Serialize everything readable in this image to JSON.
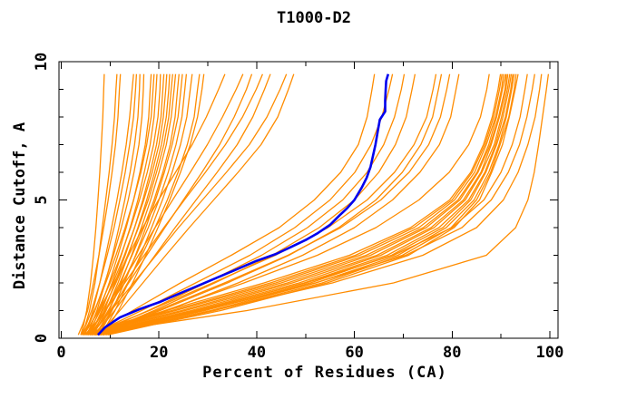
{
  "chart_data": {
    "type": "line",
    "title": "T1000-D2",
    "xlabel": "Percent of Residues (CA)",
    "ylabel": "Distance Cutoff, A",
    "xlim": [
      0,
      102
    ],
    "ylim": [
      0,
      10
    ],
    "x_major_ticks": [
      0,
      20,
      40,
      60,
      80,
      100
    ],
    "x_minor_ticks": [
      10,
      30,
      50,
      70,
      90
    ],
    "y_major_ticks": [
      0,
      5,
      10
    ],
    "y_minor_ticks": [
      1,
      2,
      3,
      4,
      6,
      7,
      8,
      9
    ],
    "grid": false,
    "legend_position": "none",
    "colors": {
      "models": "#ff8c00",
      "highlight": "#0000ee",
      "axis": "#000000",
      "background": "#ffffff"
    },
    "series": [
      {
        "name": "other-models",
        "color": "#ff8c00",
        "y_grid": [
          0.12,
          0.5,
          1,
          2,
          3,
          4,
          5,
          6,
          7,
          8,
          9,
          9.55
        ],
        "curves_x": [
          [
            4.0,
            4.6,
            5.2,
            6.0,
            6.6,
            7.1,
            7.5,
            7.9,
            8.2,
            8.5,
            8.7,
            8.8
          ],
          [
            4.2,
            5.0,
            5.8,
            6.9,
            7.7,
            8.4,
            9.1,
            9.8,
            10.4,
            10.9,
            11.2,
            11.4
          ],
          [
            3.5,
            4.4,
            5.4,
            6.6,
            7.7,
            8.7,
            9.6,
            10.4,
            11.1,
            11.6,
            11.9,
            12.1
          ],
          [
            4.8,
            5.6,
            6.5,
            7.9,
            9.1,
            10.3,
            11.4,
            12.4,
            13.3,
            14.0,
            14.5,
            14.8
          ],
          [
            4.0,
            5.1,
            6.2,
            7.9,
            9.4,
            10.8,
            12.0,
            13.1,
            14.0,
            14.8,
            15.2,
            15.4
          ],
          [
            5.2,
            6.2,
            7.3,
            9.0,
            10.5,
            11.8,
            13.0,
            14.1,
            15.0,
            15.7,
            16.0,
            16.1
          ],
          [
            4.5,
            5.7,
            6.9,
            8.9,
            10.7,
            12.3,
            13.7,
            14.9,
            15.9,
            16.5,
            16.8,
            16.9
          ],
          [
            5.5,
            6.6,
            7.8,
            9.8,
            11.6,
            13.3,
            14.8,
            16.1,
            17.2,
            17.9,
            18.2,
            18.4
          ],
          [
            4.2,
            5.5,
            6.8,
            9.1,
            11.2,
            13.1,
            14.8,
            16.3,
            17.5,
            18.4,
            18.8,
            19.0
          ],
          [
            5.8,
            7.0,
            8.3,
            10.4,
            12.3,
            14.1,
            15.7,
            17.0,
            18.2,
            19.0,
            19.4,
            19.6
          ],
          [
            4.6,
            6.0,
            7.5,
            10.0,
            12.2,
            14.2,
            16.0,
            17.6,
            18.9,
            19.8,
            20.2,
            20.3
          ],
          [
            6.2,
            7.5,
            8.8,
            11.0,
            13.1,
            15.0,
            16.7,
            18.2,
            19.5,
            20.4,
            20.8,
            21.0
          ],
          [
            5.0,
            6.5,
            8.0,
            10.6,
            12.9,
            15.0,
            16.9,
            18.6,
            20.0,
            20.9,
            21.4,
            21.6
          ],
          [
            6.5,
            7.8,
            9.2,
            11.6,
            13.7,
            15.7,
            17.5,
            19.1,
            20.5,
            21.5,
            22.0,
            22.2
          ],
          [
            5.4,
            7.0,
            8.5,
            11.2,
            13.6,
            15.8,
            17.8,
            19.5,
            21.0,
            22.0,
            22.5,
            22.8
          ],
          [
            7.0,
            8.3,
            9.8,
            12.2,
            14.4,
            16.4,
            18.3,
            20.0,
            21.5,
            22.5,
            23.1,
            23.4
          ],
          [
            5.8,
            7.4,
            9.1,
            12.0,
            14.5,
            16.9,
            19.0,
            20.8,
            22.3,
            23.3,
            23.8,
            24.1
          ],
          [
            7.4,
            8.9,
            10.4,
            12.9,
            15.2,
            17.3,
            19.3,
            21.1,
            22.7,
            23.9,
            24.5,
            24.8
          ],
          [
            6.1,
            7.9,
            9.6,
            12.6,
            15.3,
            17.8,
            20.0,
            21.9,
            23.5,
            24.7,
            25.3,
            25.6
          ],
          [
            7.8,
            9.4,
            11.0,
            13.7,
            16.2,
            18.5,
            20.7,
            22.7,
            24.4,
            25.7,
            26.4,
            26.8
          ],
          [
            6.6,
            8.5,
            10.3,
            13.6,
            16.5,
            19.2,
            21.7,
            23.9,
            25.8,
            27.2,
            27.9,
            28.3
          ],
          [
            8.2,
            10.0,
            11.7,
            14.6,
            17.3,
            19.8,
            22.2,
            24.4,
            26.4,
            27.9,
            28.8,
            29.2
          ],
          [
            4.4,
            6.0,
            7.7,
            10.8,
            13.8,
            16.7,
            19.9,
            23.4,
            26.8,
            29.7,
            32.2,
            33.5
          ],
          [
            5.2,
            7.0,
            8.9,
            12.4,
            15.8,
            19.2,
            22.8,
            26.4,
            29.9,
            33.0,
            35.8,
            37.2
          ],
          [
            6.0,
            7.9,
            10.0,
            13.8,
            17.5,
            21.2,
            25.0,
            28.8,
            32.4,
            35.4,
            37.9,
            39.0
          ],
          [
            4.8,
            6.8,
            9.0,
            13.0,
            17.0,
            21.0,
            25.2,
            29.5,
            33.6,
            37.1,
            39.9,
            41.2
          ],
          [
            6.6,
            8.7,
            10.9,
            15.1,
            19.2,
            23.3,
            27.6,
            31.9,
            36.0,
            39.2,
            41.6,
            42.8
          ],
          [
            5.5,
            7.8,
            10.2,
            14.8,
            19.4,
            24.0,
            28.9,
            33.8,
            38.5,
            42.1,
            44.8,
            46.1
          ],
          [
            7.2,
            9.5,
            12.0,
            16.7,
            21.4,
            26.2,
            31.2,
            36.2,
            40.9,
            44.3,
            46.5,
            47.6
          ],
          [
            6.4,
            9.8,
            14.6,
            24.4,
            34.8,
            44.6,
            51.8,
            57.2,
            60.8,
            62.6,
            63.6,
            64.1
          ],
          [
            5.8,
            10.5,
            16.4,
            27.5,
            38.6,
            47.8,
            55.0,
            60.1,
            63.4,
            65.6,
            67.1,
            67.8
          ],
          [
            6.8,
            11.4,
            17.8,
            29.6,
            41.0,
            50.4,
            57.6,
            62.6,
            66.0,
            68.2,
            69.6,
            70.2
          ],
          [
            7.5,
            12.2,
            19.0,
            31.4,
            43.2,
            52.8,
            60.0,
            65.0,
            68.4,
            70.6,
            71.8,
            72.4
          ],
          [
            6.2,
            11.0,
            18.0,
            31.0,
            43.8,
            54.6,
            62.6,
            68.2,
            72.2,
            74.8,
            76.1,
            76.7
          ],
          [
            8.0,
            13.0,
            20.2,
            34.0,
            46.6,
            56.8,
            64.4,
            69.8,
            73.6,
            76.0,
            77.2,
            77.8
          ],
          [
            7.0,
            12.4,
            19.6,
            33.4,
            46.4,
            57.2,
            65.4,
            71.2,
            75.2,
            77.6,
            78.9,
            79.5
          ],
          [
            8.5,
            13.8,
            21.6,
            36.2,
            49.4,
            60.0,
            67.8,
            73.4,
            77.4,
            79.7,
            80.8,
            81.4
          ],
          [
            7.2,
            13.2,
            21.2,
            37.4,
            52.4,
            64.4,
            73.2,
            79.4,
            83.4,
            85.8,
            87.1,
            87.6
          ],
          [
            4.5,
            11.0,
            21.5,
            41.5,
            59.0,
            71.5,
            79.5,
            83.8,
            86.4,
            88.2,
            89.4,
            89.9
          ],
          [
            5.0,
            11.8,
            22.6,
            42.8,
            60.2,
            72.2,
            80.0,
            84.1,
            86.7,
            88.5,
            89.7,
            90.2
          ],
          [
            5.4,
            12.4,
            23.4,
            43.9,
            61.1,
            73.2,
            80.5,
            84.6,
            87.0,
            88.9,
            90.1,
            90.5
          ],
          [
            5.9,
            13.1,
            24.6,
            45.0,
            62.4,
            74.1,
            81.2,
            85.1,
            87.5,
            89.1,
            90.3,
            90.9
          ],
          [
            6.3,
            13.9,
            25.4,
            46.3,
            63.3,
            74.7,
            81.6,
            85.3,
            87.8,
            89.5,
            90.8,
            91.1
          ],
          [
            6.8,
            14.7,
            26.6,
            47.3,
            64.6,
            75.7,
            82.3,
            85.9,
            88.0,
            89.7,
            91.0,
            91.4
          ],
          [
            7.3,
            15.3,
            27.4,
            48.7,
            65.4,
            76.3,
            82.7,
            86.1,
            88.6,
            90.1,
            91.3,
            91.8
          ],
          [
            7.7,
            16.2,
            28.6,
            49.7,
            66.7,
            77.3,
            83.4,
            86.7,
            88.9,
            90.4,
            91.6,
            92.1
          ],
          [
            8.1,
            16.8,
            29.4,
            51.0,
            67.6,
            78.1,
            83.8,
            86.9,
            89.1,
            90.9,
            92.0,
            92.4
          ],
          [
            8.6,
            17.7,
            30.6,
            52.1,
            68.9,
            78.8,
            84.5,
            87.5,
            89.6,
            91.1,
            92.2,
            92.7
          ],
          [
            9.1,
            18.3,
            31.4,
            53.4,
            69.8,
            79.8,
            85.0,
            87.9,
            89.8,
            91.6,
            92.7,
            93.1
          ],
          [
            9.5,
            19.1,
            32.6,
            54.4,
            71.1,
            80.4,
            85.6,
            88.1,
            90.3,
            91.7,
            92.9,
            93.5
          ],
          [
            7.0,
            15.5,
            28.0,
            50.0,
            68.0,
            80.0,
            86.5,
            90.0,
            92.3,
            93.9,
            94.9,
            95.4
          ],
          [
            7.5,
            16.0,
            29.0,
            52.0,
            70.5,
            82.0,
            88.0,
            91.5,
            93.8,
            95.3,
            96.4,
            96.9
          ],
          [
            8.0,
            17.5,
            31.0,
            55.5,
            74.0,
            85.0,
            90.5,
            93.5,
            95.5,
            97.0,
            97.9,
            98.3
          ],
          [
            8.5,
            19.0,
            38.0,
            68.0,
            87.0,
            93.0,
            95.5,
            96.8,
            97.7,
            98.5,
            99.3,
            99.7
          ]
        ]
      },
      {
        "name": "highlighted-model",
        "color": "#0000ee",
        "points": [
          [
            7.5,
            0.12
          ],
          [
            9,
            0.4
          ],
          [
            12,
            0.75
          ],
          [
            16,
            1.05
          ],
          [
            20,
            1.3
          ],
          [
            24,
            1.6
          ],
          [
            28,
            1.9
          ],
          [
            32,
            2.2
          ],
          [
            36,
            2.5
          ],
          [
            40,
            2.8
          ],
          [
            44,
            3.05
          ],
          [
            47,
            3.3
          ],
          [
            50,
            3.55
          ],
          [
            52.5,
            3.8
          ],
          [
            55,
            4.1
          ],
          [
            57,
            4.45
          ],
          [
            58.5,
            4.7
          ],
          [
            60,
            5.0
          ],
          [
            61.5,
            5.45
          ],
          [
            62.5,
            5.8
          ],
          [
            63.3,
            6.2
          ],
          [
            63.8,
            6.6
          ],
          [
            64.3,
            7.0
          ],
          [
            64.8,
            7.5
          ],
          [
            65.2,
            7.9
          ],
          [
            66.3,
            8.2
          ],
          [
            66.3,
            8.6
          ],
          [
            66.4,
            9.0
          ],
          [
            66.5,
            9.3
          ],
          [
            66.9,
            9.55
          ]
        ]
      }
    ]
  }
}
